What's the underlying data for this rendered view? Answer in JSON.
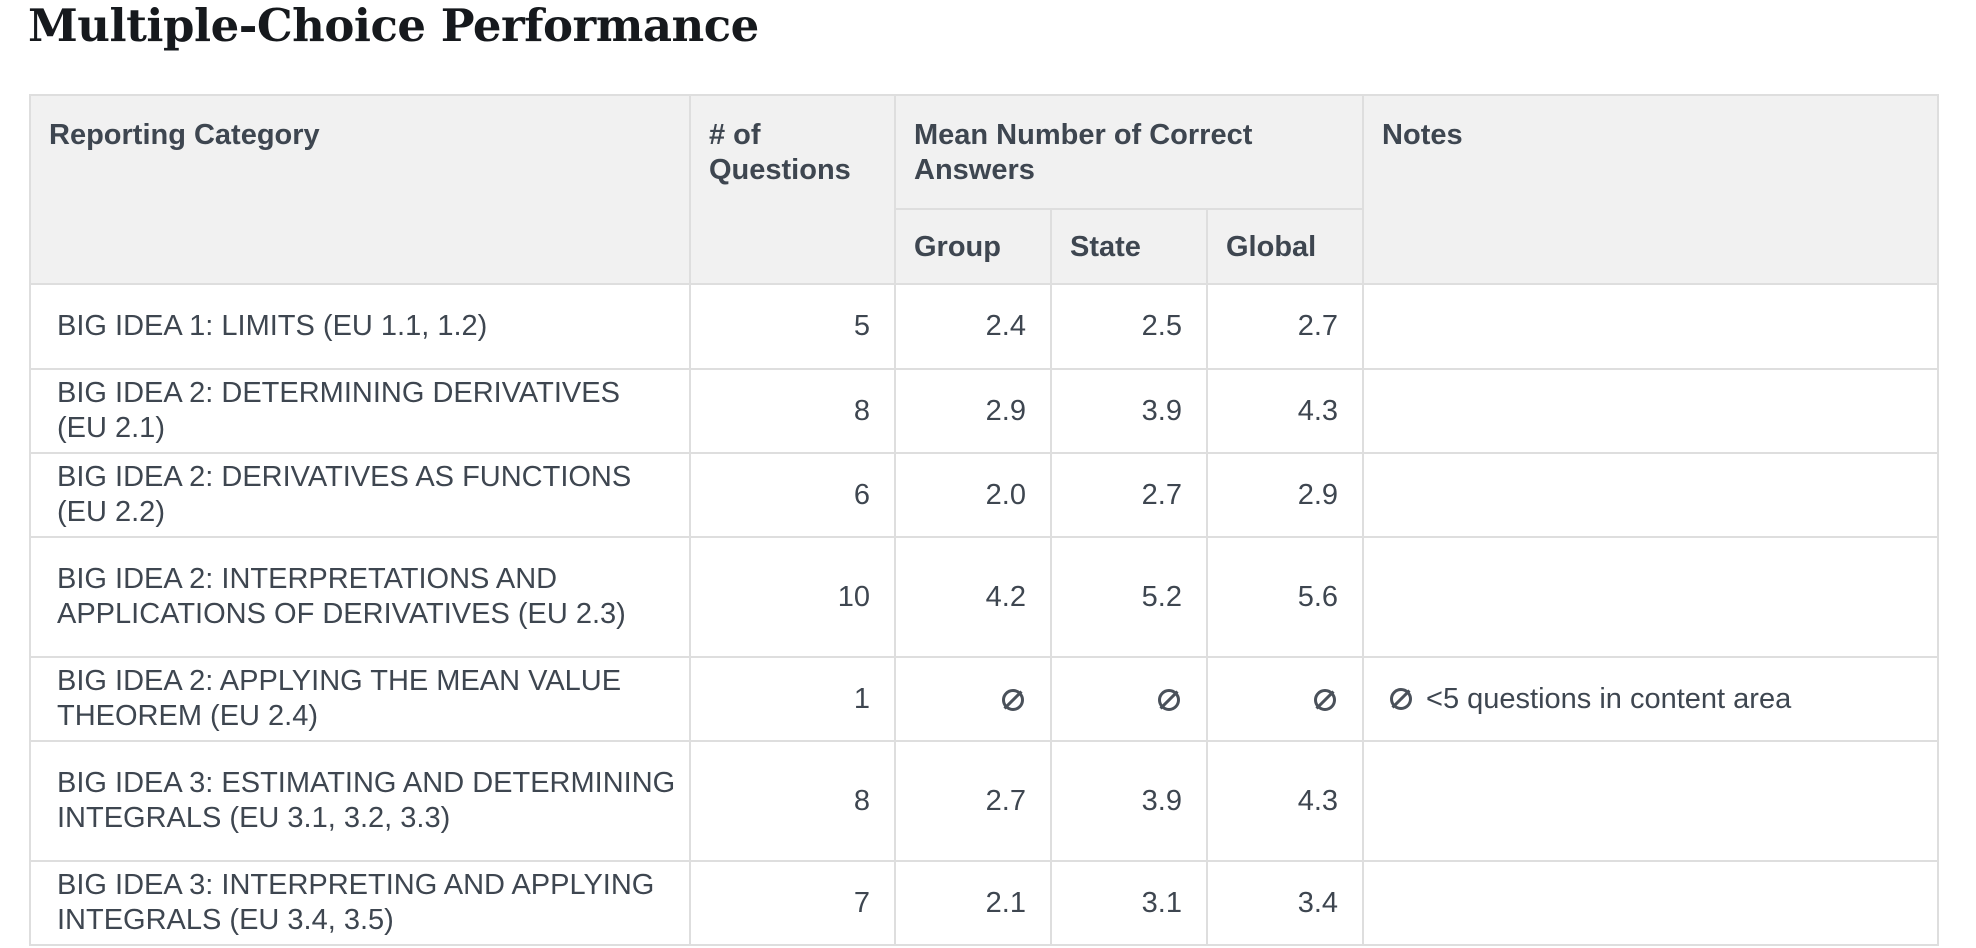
{
  "title": "Multiple-Choice Performance",
  "headers": {
    "category": "Reporting Category",
    "questions_line1": "# of",
    "questions_line2": "Questions",
    "mean": "Mean Number of Correct Answers",
    "group": "Group",
    "state": "State",
    "global": "Global",
    "notes": "Notes"
  },
  "na_icon": "not-available-icon",
  "rows": [
    {
      "category": "BIG IDEA 1: LIMITS (EU 1.1, 1.2)",
      "questions": "5",
      "group": "2.4",
      "state": "2.5",
      "global": "2.7",
      "note": ""
    },
    {
      "category": "BIG IDEA 2: DETERMINING DERIVATIVES (EU 2.1)",
      "questions": "8",
      "group": "2.9",
      "state": "3.9",
      "global": "4.3",
      "note": ""
    },
    {
      "category": "BIG IDEA 2: DERIVATIVES AS FUNCTIONS (EU 2.2)",
      "questions": "6",
      "group": "2.0",
      "state": "2.7",
      "global": "2.9",
      "note": ""
    },
    {
      "category": "BIG IDEA 2: INTERPRETATIONS AND APPLICATIONS OF DERIVATIVES (EU 2.3)",
      "questions": "10",
      "group": "4.2",
      "state": "5.2",
      "global": "5.6",
      "note": ""
    },
    {
      "category": "BIG IDEA 2: APPLYING THE MEAN VALUE THEOREM (EU 2.4)",
      "questions": "1",
      "group": null,
      "state": null,
      "global": null,
      "note": "<5 questions in content area"
    },
    {
      "category": "BIG IDEA 3: ESTIMATING AND DETERMINING INTEGRALS (EU 3.1, 3.2, 3.3)",
      "questions": "8",
      "group": "2.7",
      "state": "3.9",
      "global": "4.3",
      "note": ""
    },
    {
      "category": "BIG IDEA 3: INTERPRETING AND APPLYING INTEGRALS (EU 3.4, 3.5)",
      "questions": "7",
      "group": "2.1",
      "state": "3.1",
      "global": "3.4",
      "note": ""
    }
  ]
}
